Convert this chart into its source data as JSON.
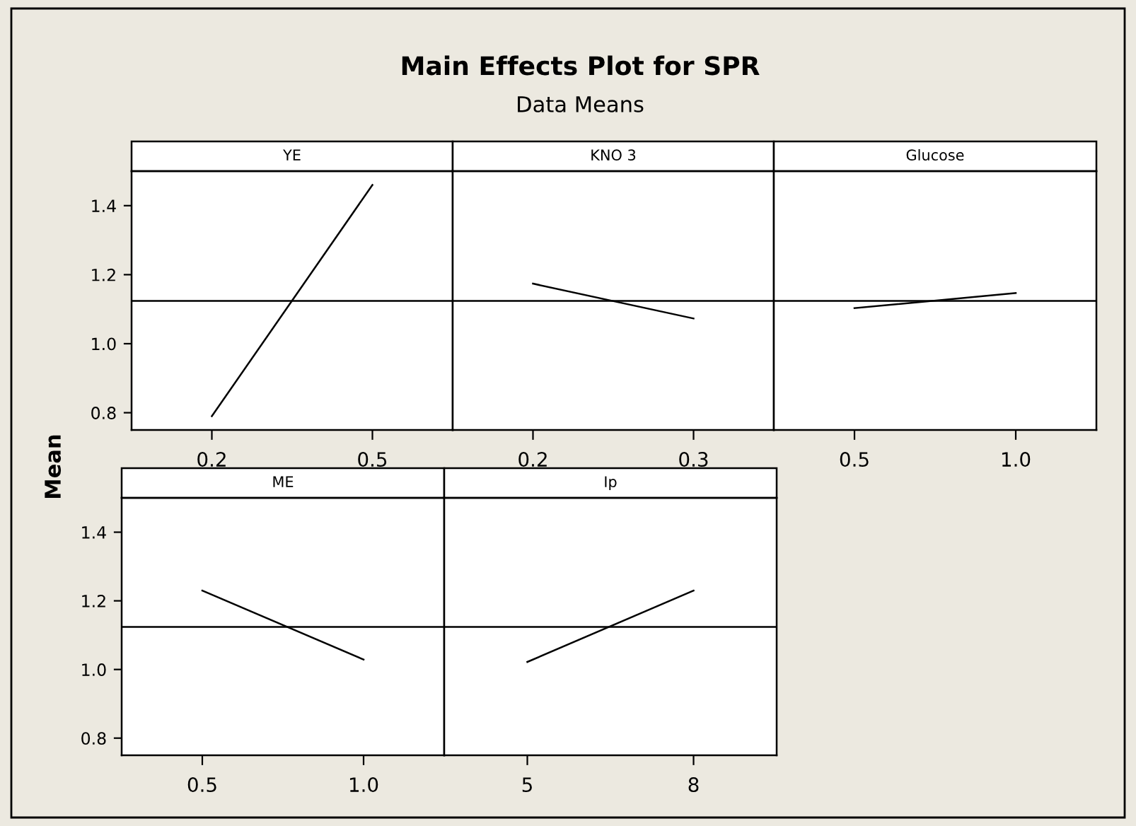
{
  "chart_data": [
    {
      "type": "other",
      "title": "Main Effects Plot for SPR",
      "subtitle": "Data Means"
    },
    {
      "type": "line",
      "title": "YE",
      "x": [
        0.2,
        0.5
      ],
      "xlim": [
        0.05,
        0.65
      ],
      "xticks": [
        0.2,
        0.5
      ],
      "ylim": [
        0.75,
        1.5
      ],
      "yticks": [
        0.8,
        {
          "value": 1,
          "label": "1.0"
        },
        1.2,
        1.4
      ],
      "series": [
        {
          "color": "#000000",
          "values": [
            0.79,
            1.46
          ]
        }
      ],
      "ref_lines": [
        {
          "axis": "y",
          "value": 1.124,
          "color": "#000000"
        }
      ],
      "marker": "none",
      "line_style": "solid",
      "grid": false
    },
    {
      "type": "line",
      "title": "KNO 3",
      "x": [
        0.2,
        0.3
      ],
      "xlim": [
        0.15,
        0.35
      ],
      "xticks": [
        0.2,
        0.3
      ],
      "ylim": [
        0.75,
        1.5
      ],
      "tick_labels": "x",
      "series": [
        {
          "color": "#000000",
          "values": [
            1.174,
            1.073
          ]
        }
      ],
      "ref_lines": [
        {
          "axis": "y",
          "value": 1.124,
          "color": "#000000"
        }
      ],
      "marker": "none",
      "line_style": "solid",
      "grid": false
    },
    {
      "type": "line",
      "title": "Glucose",
      "x": [
        0.5,
        1
      ],
      "xlim": [
        0.25,
        1.25
      ],
      "xticks": [
        0.5,
        {
          "value": 1,
          "label": "1.0"
        }
      ],
      "ylim": [
        0.75,
        1.5
      ],
      "tick_labels": "x",
      "series": [
        {
          "color": "#000000",
          "values": [
            1.103,
            1.147
          ]
        }
      ],
      "ref_lines": [
        {
          "axis": "y",
          "value": 1.124,
          "color": "#000000"
        }
      ],
      "marker": "none",
      "line_style": "solid",
      "grid": false
    },
    {
      "type": "line",
      "title": "ME",
      "ylabel": "Mean",
      "x": [
        0.5,
        1
      ],
      "xlim": [
        0.25,
        1.25
      ],
      "xticks": [
        0.5,
        {
          "value": 1,
          "label": "1.0"
        }
      ],
      "ylim": [
        0.75,
        1.5
      ],
      "yticks": [
        0.8,
        {
          "value": 1,
          "label": "1.0"
        },
        1.2,
        1.4
      ],
      "series": [
        {
          "color": "#000000",
          "values": [
            1.23,
            1.029
          ]
        }
      ],
      "ref_lines": [
        {
          "axis": "y",
          "value": 1.124,
          "color": "#000000"
        }
      ],
      "marker": "none",
      "line_style": "solid",
      "grid": false
    },
    {
      "type": "line",
      "title": "Ip",
      "x": [
        5,
        8
      ],
      "xlim": [
        3.5,
        9.5
      ],
      "xticks": [
        5,
        8
      ],
      "ylim": [
        0.75,
        1.5
      ],
      "tick_labels": "x",
      "series": [
        {
          "color": "#000000",
          "values": [
            1.022,
            1.23
          ]
        }
      ],
      "ref_lines": [
        {
          "axis": "y",
          "value": 1.124,
          "color": "#000000"
        }
      ],
      "marker": "none",
      "line_style": "solid",
      "grid": false
    }
  ]
}
